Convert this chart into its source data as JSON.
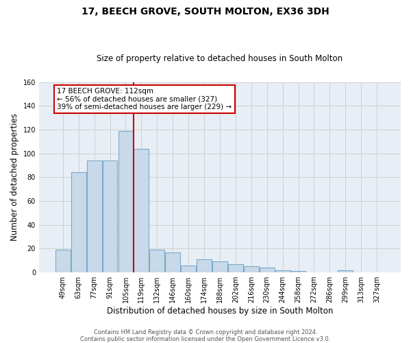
{
  "title": "17, BEECH GROVE, SOUTH MOLTON, EX36 3DH",
  "subtitle": "Size of property relative to detached houses in South Molton",
  "xlabel": "Distribution of detached houses by size in South Molton",
  "ylabel": "Number of detached properties",
  "footer_line1": "Contains HM Land Registry data © Crown copyright and database right 2024.",
  "footer_line2": "Contains public sector information licensed under the Open Government Licence v3.0.",
  "bar_labels": [
    "49sqm",
    "63sqm",
    "77sqm",
    "91sqm",
    "105sqm",
    "119sqm",
    "132sqm",
    "146sqm",
    "160sqm",
    "174sqm",
    "188sqm",
    "202sqm",
    "216sqm",
    "230sqm",
    "244sqm",
    "258sqm",
    "272sqm",
    "286sqm",
    "299sqm",
    "313sqm",
    "327sqm"
  ],
  "bar_values": [
    19,
    84,
    94,
    94,
    119,
    104,
    19,
    17,
    6,
    11,
    9,
    7,
    5,
    4,
    2,
    1,
    0,
    0,
    2,
    0,
    0
  ],
  "bar_color": "#c8d9ea",
  "bar_edgecolor": "#7aaac8",
  "plot_bg_color": "#e8eef5",
  "background_color": "#ffffff",
  "grid_color": "#cccccc",
  "vline_color": "#cc0000",
  "annotation_text": "17 BEECH GROVE: 112sqm\n← 56% of detached houses are smaller (327)\n39% of semi-detached houses are larger (229) →",
  "annotation_box_edgecolor": "#cc0000",
  "ylim": [
    0,
    160
  ],
  "yticks": [
    0,
    20,
    40,
    60,
    80,
    100,
    120,
    140,
    160
  ]
}
